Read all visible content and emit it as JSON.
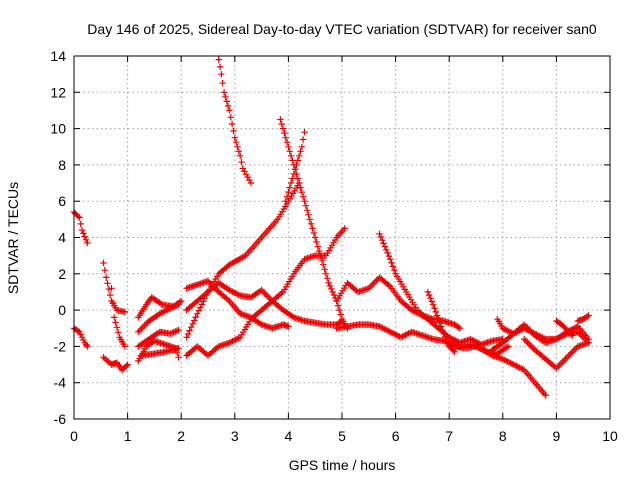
{
  "chart_data": {
    "type": "scatter",
    "title": "Day 146 of 2025, Sidereal Day-to-day VTEC variation (SDTVAR) for receiver san0",
    "xlabel": "GPS time / hours",
    "ylabel": "SDTVAR / TECUs",
    "xlim": [
      0,
      10
    ],
    "ylim": [
      -6,
      14
    ],
    "xticks": [
      0,
      1,
      2,
      3,
      4,
      5,
      6,
      7,
      8,
      9,
      10
    ],
    "yticks": [
      -6,
      -4,
      -2,
      0,
      2,
      4,
      6,
      8,
      10,
      12,
      14
    ],
    "grid": true,
    "marker": "+",
    "color": "#ee0000",
    "series": [
      {
        "name": "trace 1",
        "points": [
          [
            0.0,
            5.4
          ],
          [
            0.1,
            5.1
          ],
          [
            0.15,
            4.4
          ],
          [
            0.25,
            3.7
          ]
        ]
      },
      {
        "name": "trace 2",
        "points": [
          [
            0.0,
            -1.0
          ],
          [
            0.1,
            -1.2
          ],
          [
            0.2,
            -1.8
          ],
          [
            0.25,
            -2.0
          ]
        ]
      },
      {
        "name": "trace 3",
        "points": [
          [
            0.55,
            2.6
          ],
          [
            0.6,
            1.8
          ],
          [
            0.7,
            0.5
          ],
          [
            0.8,
            0.0
          ],
          [
            0.95,
            -0.1
          ]
        ]
      },
      {
        "name": "trace 4",
        "points": [
          [
            0.55,
            -2.6
          ],
          [
            0.7,
            -3.0
          ],
          [
            0.8,
            -2.9
          ],
          [
            0.9,
            -3.3
          ],
          [
            1.0,
            -3.0
          ]
        ]
      },
      {
        "name": "trace 5",
        "points": [
          [
            0.7,
            1.2
          ],
          [
            0.75,
            -0.4
          ],
          [
            0.85,
            -1.5
          ],
          [
            0.95,
            -2.0
          ]
        ]
      },
      {
        "name": "trace 6",
        "points": [
          [
            1.2,
            -0.4
          ],
          [
            1.35,
            0.3
          ],
          [
            1.45,
            0.7
          ],
          [
            1.65,
            0.3
          ],
          [
            1.85,
            0.2
          ],
          [
            2.0,
            0.5
          ]
        ]
      },
      {
        "name": "trace 7",
        "points": [
          [
            1.2,
            -1.2
          ],
          [
            1.4,
            -0.6
          ],
          [
            1.6,
            -0.2
          ],
          [
            1.8,
            0.1
          ],
          [
            1.95,
            0.3
          ]
        ]
      },
      {
        "name": "trace 8",
        "points": [
          [
            1.2,
            -2.0
          ],
          [
            1.4,
            -1.6
          ],
          [
            1.6,
            -1.2
          ],
          [
            1.8,
            -1.3
          ],
          [
            1.95,
            -1.1
          ]
        ]
      },
      {
        "name": "trace 9",
        "points": [
          [
            1.2,
            -2.8
          ],
          [
            1.35,
            -2.0
          ],
          [
            1.5,
            -1.7
          ],
          [
            1.7,
            -1.9
          ],
          [
            1.9,
            -2.1
          ],
          [
            1.95,
            -2.6
          ]
        ]
      },
      {
        "name": "trace 10",
        "points": [
          [
            1.25,
            -2.5
          ],
          [
            1.5,
            -2.4
          ],
          [
            1.7,
            -2.3
          ],
          [
            1.95,
            -2.1
          ]
        ]
      },
      {
        "name": "trace 11",
        "points": [
          [
            2.1,
            -1.5
          ],
          [
            2.3,
            -0.2
          ],
          [
            2.5,
            1.0
          ],
          [
            2.7,
            2.0
          ],
          [
            2.9,
            2.5
          ],
          [
            3.2,
            3.0
          ],
          [
            3.5,
            4.0
          ],
          [
            3.8,
            5.0
          ],
          [
            4.0,
            6.0
          ],
          [
            4.2,
            7.0
          ]
        ]
      },
      {
        "name": "trace 12",
        "points": [
          [
            2.1,
            0.0
          ],
          [
            2.3,
            0.5
          ],
          [
            2.5,
            1.0
          ],
          [
            2.7,
            1.5
          ],
          [
            2.9,
            1.1
          ],
          [
            3.1,
            0.8
          ],
          [
            3.3,
            0.7
          ],
          [
            3.5,
            1.1
          ],
          [
            3.7,
            0.5
          ],
          [
            3.9,
            0.0
          ],
          [
            4.1,
            -0.4
          ],
          [
            4.3,
            -0.6
          ],
          [
            4.5,
            -0.7
          ],
          [
            4.7,
            -0.8
          ],
          [
            4.9,
            -0.8
          ],
          [
            5.0,
            -0.6
          ]
        ]
      },
      {
        "name": "trace 13",
        "points": [
          [
            2.1,
            1.2
          ],
          [
            2.3,
            1.4
          ],
          [
            2.5,
            1.6
          ],
          [
            2.7,
            1.0
          ],
          [
            2.9,
            0.5
          ],
          [
            3.1,
            -0.2
          ],
          [
            3.3,
            -0.4
          ],
          [
            3.5,
            -0.8
          ],
          [
            3.7,
            -1.0
          ],
          [
            3.9,
            -0.8
          ],
          [
            4.0,
            -0.9
          ]
        ]
      },
      {
        "name": "trace 14",
        "points": [
          [
            2.1,
            -2.5
          ],
          [
            2.3,
            -2.0
          ],
          [
            2.5,
            -2.5
          ],
          [
            2.7,
            -2.0
          ],
          [
            2.9,
            -1.8
          ],
          [
            3.1,
            -1.5
          ],
          [
            3.3,
            -0.5
          ],
          [
            3.5,
            0.0
          ],
          [
            3.7,
            0.5
          ],
          [
            3.9,
            1.0
          ],
          [
            4.1,
            2.0
          ],
          [
            4.3,
            2.8
          ],
          [
            4.5,
            3.0
          ],
          [
            4.7,
            3.0
          ],
          [
            4.9,
            4.0
          ],
          [
            5.05,
            4.5
          ]
        ]
      },
      {
        "name": "trace 15",
        "points": [
          [
            2.7,
            13.8
          ],
          [
            2.75,
            13.0
          ],
          [
            2.8,
            12.0
          ],
          [
            2.9,
            11.0
          ],
          [
            3.0,
            9.5
          ],
          [
            3.1,
            8.5
          ],
          [
            3.15,
            7.8
          ],
          [
            3.3,
            7.0
          ]
        ]
      },
      {
        "name": "trace 16",
        "points": [
          [
            3.85,
            10.5
          ],
          [
            3.95,
            9.5
          ],
          [
            4.05,
            8.5
          ],
          [
            4.15,
            7.5
          ],
          [
            4.25,
            6.5
          ],
          [
            4.35,
            5.5
          ],
          [
            4.45,
            4.5
          ],
          [
            4.55,
            3.5
          ],
          [
            4.65,
            2.5
          ],
          [
            4.75,
            1.5
          ],
          [
            4.9,
            0.5
          ],
          [
            5.0,
            -0.5
          ],
          [
            5.1,
            -1.0
          ]
        ]
      },
      {
        "name": "trace 17",
        "points": [
          [
            4.3,
            9.8
          ],
          [
            4.25,
            9.0
          ],
          [
            4.15,
            8.0
          ],
          [
            4.05,
            7.0
          ],
          [
            4.0,
            6.5
          ],
          [
            3.95,
            6.0
          ]
        ]
      },
      {
        "name": "trace 18",
        "points": [
          [
            4.9,
            0.5
          ],
          [
            5.1,
            1.5
          ],
          [
            5.3,
            1.0
          ],
          [
            5.5,
            1.2
          ],
          [
            5.7,
            1.8
          ],
          [
            5.9,
            1.3
          ],
          [
            6.1,
            0.5
          ],
          [
            6.3,
            0.0
          ],
          [
            6.5,
            -0.3
          ],
          [
            6.7,
            -0.5
          ],
          [
            6.9,
            -0.6
          ],
          [
            7.1,
            -0.8
          ],
          [
            7.2,
            -1.0
          ]
        ]
      },
      {
        "name": "trace 19",
        "points": [
          [
            4.9,
            -1.0
          ],
          [
            5.1,
            -0.9
          ],
          [
            5.3,
            -0.8
          ],
          [
            5.5,
            -0.8
          ],
          [
            5.7,
            -0.9
          ],
          [
            5.9,
            -1.2
          ],
          [
            6.1,
            -1.5
          ],
          [
            6.3,
            -1.2
          ],
          [
            6.5,
            -1.4
          ],
          [
            6.7,
            -1.6
          ],
          [
            6.9,
            -1.7
          ],
          [
            7.1,
            -2.0
          ],
          [
            7.3,
            -2.1
          ],
          [
            7.5,
            -2.0
          ],
          [
            7.7,
            -2.3
          ],
          [
            7.9,
            -2.4
          ],
          [
            8.1,
            -2.0
          ]
        ]
      },
      {
        "name": "trace 20",
        "points": [
          [
            5.7,
            4.2
          ],
          [
            5.8,
            3.5
          ],
          [
            5.9,
            2.8
          ],
          [
            6.0,
            2.0
          ],
          [
            6.2,
            1.0
          ],
          [
            6.4,
            0.0
          ],
          [
            6.6,
            -0.5
          ],
          [
            6.8,
            -1.0
          ],
          [
            7.0,
            -1.5
          ],
          [
            7.2,
            -1.8
          ],
          [
            7.4,
            -1.6
          ],
          [
            7.6,
            -1.9
          ],
          [
            7.8,
            -1.7
          ],
          [
            8.0,
            -1.6
          ]
        ]
      },
      {
        "name": "trace 21",
        "points": [
          [
            6.6,
            1.0
          ],
          [
            6.7,
            0.3
          ],
          [
            6.8,
            -0.5
          ],
          [
            6.9,
            -1.3
          ],
          [
            7.0,
            -2.0
          ],
          [
            7.1,
            -2.3
          ]
        ]
      },
      {
        "name": "trace 22",
        "points": [
          [
            7.0,
            -1.8
          ],
          [
            7.2,
            -2.0
          ],
          [
            7.4,
            -1.9
          ],
          [
            7.6,
            -2.1
          ],
          [
            7.8,
            -2.5
          ],
          [
            8.0,
            -2.7
          ],
          [
            8.2,
            -3.0
          ],
          [
            8.4,
            -3.3
          ],
          [
            8.6,
            -4.0
          ],
          [
            8.8,
            -4.7
          ]
        ]
      },
      {
        "name": "trace 23",
        "points": [
          [
            7.9,
            -0.5
          ],
          [
            8.0,
            -1.0
          ],
          [
            8.2,
            -1.3
          ],
          [
            8.4,
            -1.0
          ],
          [
            8.6,
            -1.3
          ],
          [
            8.8,
            -1.6
          ],
          [
            9.0,
            -1.6
          ],
          [
            9.2,
            -1.3
          ],
          [
            9.4,
            -1.2
          ],
          [
            9.6,
            -1.8
          ]
        ]
      },
      {
        "name": "trace 24",
        "points": [
          [
            7.8,
            -2.2
          ],
          [
            8.0,
            -1.8
          ],
          [
            8.2,
            -1.3
          ],
          [
            8.4,
            -0.8
          ],
          [
            8.6,
            -1.4
          ],
          [
            8.8,
            -1.8
          ],
          [
            9.0,
            -1.6
          ],
          [
            9.2,
            -1.2
          ],
          [
            9.4,
            -0.9
          ],
          [
            9.6,
            -1.6
          ]
        ]
      },
      {
        "name": "trace 25",
        "points": [
          [
            8.4,
            -1.6
          ],
          [
            8.6,
            -2.2
          ],
          [
            8.8,
            -2.7
          ],
          [
            9.0,
            -3.2
          ],
          [
            9.2,
            -2.6
          ],
          [
            9.4,
            -2.0
          ],
          [
            9.6,
            -1.8
          ]
        ]
      },
      {
        "name": "trace 26",
        "points": [
          [
            9.0,
            -0.6
          ],
          [
            9.1,
            -0.8
          ],
          [
            9.2,
            -1.1
          ],
          [
            9.3,
            -1.4
          ]
        ]
      },
      {
        "name": "trace 27",
        "points": [
          [
            9.4,
            -0.6
          ],
          [
            9.5,
            -0.5
          ],
          [
            9.6,
            -0.3
          ]
        ]
      }
    ]
  }
}
